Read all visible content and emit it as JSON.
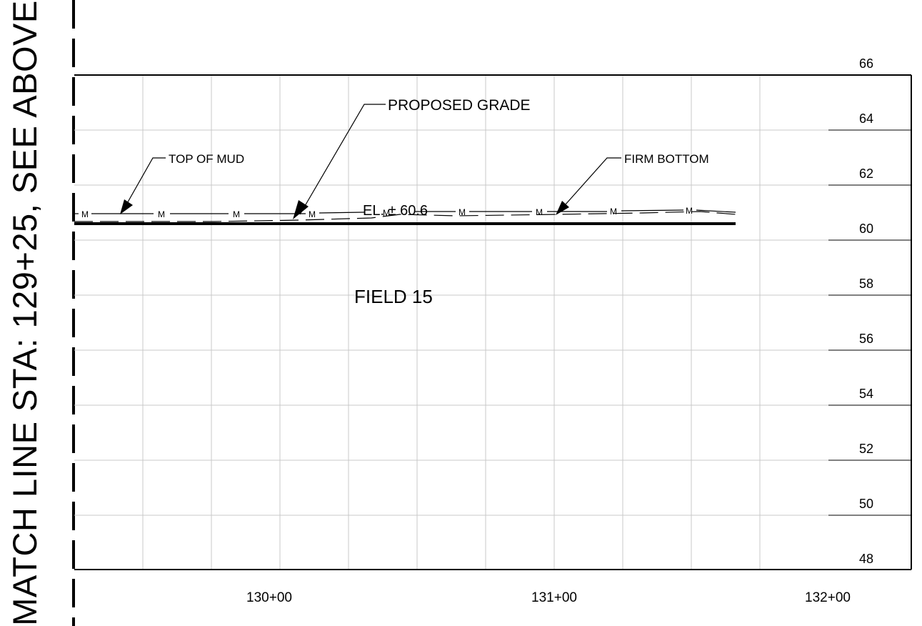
{
  "match_line": "MATCH LINE STA: 129+25, SEE ABOVE",
  "labels": {
    "proposed_grade": "PROPOSED GRADE",
    "top_of_mud": "TOP OF MUD",
    "firm_bottom": "FIRM BOTTOM",
    "elevation": "EL. ± 60.6",
    "field": "FIELD 15",
    "mud_marker": "M"
  },
  "elevations": [
    "66",
    "64",
    "62",
    "60",
    "58",
    "56",
    "54",
    "52",
    "50",
    "48"
  ],
  "stations": [
    "130+00",
    "131+00",
    "132+00"
  ],
  "line_color": "#000000",
  "grid_color": "#c8c8c8"
}
